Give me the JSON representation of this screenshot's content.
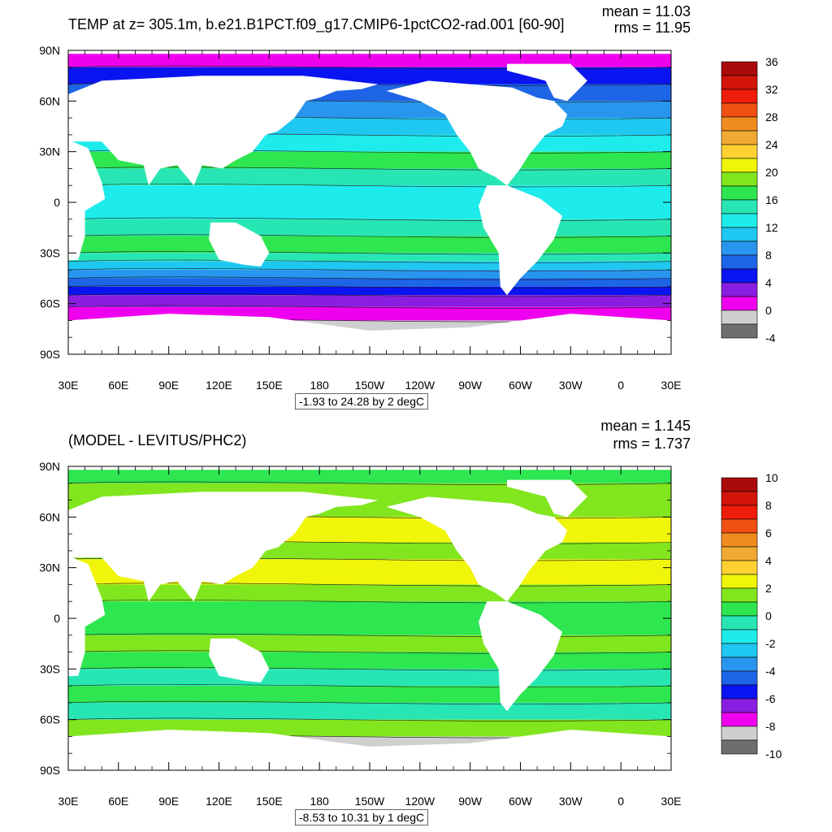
{
  "colors": {
    "land": "#ffffff",
    "frame": "#000000",
    "temp_palette": [
      "#6e6e6e",
      "#cfcfcf",
      "#ee00ee",
      "#8a1ee0",
      "#0a14f0",
      "#1e64e6",
      "#2896ee",
      "#1ec8f0",
      "#1eecec",
      "#28e6b4",
      "#2ee650",
      "#82e61e",
      "#f0f50a",
      "#ffd232",
      "#f0aa32",
      "#f08c1e",
      "#f05014",
      "#ee1e0a",
      "#d2140a",
      "#aa0a0a"
    ],
    "anom_palette": [
      "#6e6e6e",
      "#cfcfcf",
      "#ee00ee",
      "#8a1ee0",
      "#0a14f0",
      "#1e64e6",
      "#2896ee",
      "#1ec8f0",
      "#1eecec",
      "#28e6b4",
      "#2ee650",
      "#82e61e",
      "#f0f50a",
      "#ffd232",
      "#f0aa32",
      "#f08c1e",
      "#f05014",
      "#ee1e0a",
      "#d2140a",
      "#aa0a0a"
    ]
  },
  "top": {
    "title": "TEMP at z= 305.1m, b.e21.B1PCT.f09_g17.CMIP6-1pctCO2-rad.001 [60-90]",
    "mean": "mean = 11.03",
    "rms": "rms = 11.95",
    "info": "-1.93 to 24.28 by 2 degC",
    "colorbar_labels": [
      "36",
      "32",
      "28",
      "24",
      "20",
      "16",
      "12",
      "8",
      "4",
      "0",
      "-4"
    ]
  },
  "bottom": {
    "title": "(MODEL - LEVITUS/PHC2)",
    "mean": "mean = 1.145",
    "rms": "rms = 1.737",
    "info": "-8.53 to 10.31 by 1 degC",
    "colorbar_labels": [
      "10",
      "8",
      "6",
      "4",
      "2",
      "0",
      "-2",
      "-4",
      "-6",
      "-8",
      "-10"
    ]
  },
  "axes": {
    "lat_labels": [
      "90N",
      "60N",
      "30N",
      "0",
      "30S",
      "60S",
      "90S"
    ],
    "lon_labels": [
      "30E",
      "60E",
      "90E",
      "120E",
      "150E",
      "180",
      "150W",
      "120W",
      "90W",
      "60W",
      "30W",
      "0",
      "30E"
    ]
  }
}
